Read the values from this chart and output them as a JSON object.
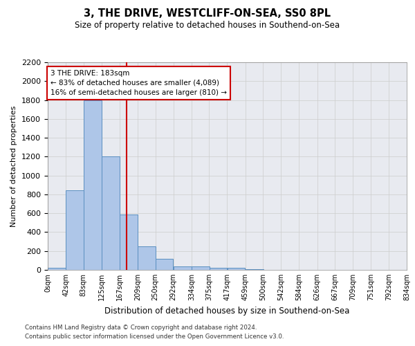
{
  "title": "3, THE DRIVE, WESTCLIFF-ON-SEA, SS0 8PL",
  "subtitle": "Size of property relative to detached houses in Southend-on-Sea",
  "xlabel": "Distribution of detached houses by size in Southend-on-Sea",
  "ylabel": "Number of detached properties",
  "footnote1": "Contains HM Land Registry data © Crown copyright and database right 2024.",
  "footnote2": "Contains public sector information licensed under the Open Government Licence v3.0.",
  "annotation_line1": "3 THE DRIVE: 183sqm",
  "annotation_line2": "← 83% of detached houses are smaller (4,089)",
  "annotation_line3": "16% of semi-detached houses are larger (810) →",
  "property_sqm": 183,
  "bin_edges": [
    0,
    42,
    83,
    125,
    167,
    209,
    250,
    292,
    334,
    375,
    417,
    459,
    500,
    542,
    584,
    626,
    667,
    709,
    751,
    792,
    834
  ],
  "bin_labels": [
    "0sqm",
    "42sqm",
    "83sqm",
    "125sqm",
    "167sqm",
    "209sqm",
    "250sqm",
    "292sqm",
    "334sqm",
    "375sqm",
    "417sqm",
    "459sqm",
    "500sqm",
    "542sqm",
    "584sqm",
    "626sqm",
    "667sqm",
    "709sqm",
    "751sqm",
    "792sqm",
    "834sqm"
  ],
  "bar_heights": [
    20,
    840,
    1800,
    1200,
    590,
    250,
    120,
    40,
    35,
    25,
    20,
    5,
    3,
    2,
    1,
    1,
    1,
    0,
    0,
    0
  ],
  "bar_color": "#aec6e8",
  "bar_edge_color": "#5a8fc0",
  "red_line_color": "#cc0000",
  "ylim": [
    0,
    2200
  ],
  "yticks": [
    0,
    200,
    400,
    600,
    800,
    1000,
    1200,
    1400,
    1600,
    1800,
    2000,
    2200
  ],
  "annotation_box_edge": "#cc0000",
  "grid_color": "#cccccc",
  "bg_color": "#e8eaf0",
  "figsize": [
    6.0,
    5.0
  ],
  "dpi": 100
}
